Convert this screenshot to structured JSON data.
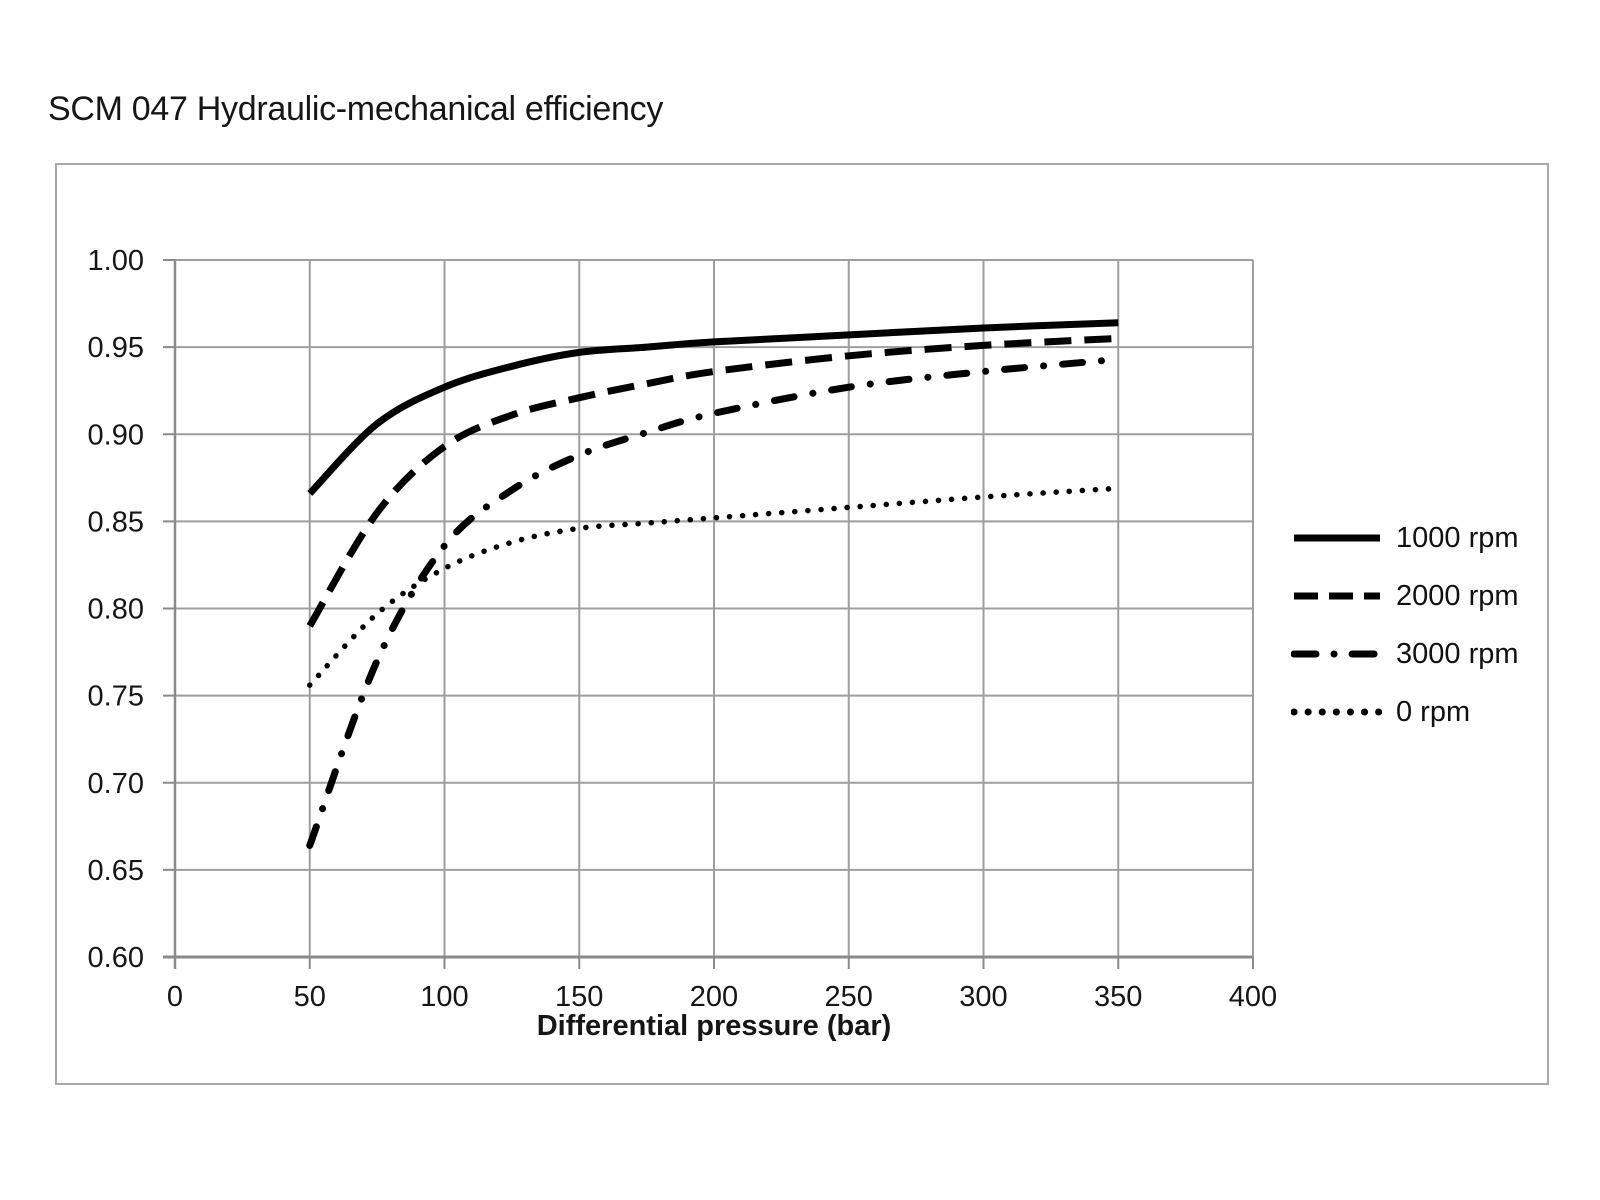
{
  "page_title": "SCM 047 Hydraulic-mechanical efficiency",
  "colors": {
    "curve": "#000000",
    "grid": "#9e9e9e",
    "axis": "#8a8a8a",
    "text": "#161616",
    "frame_border": "#a9a9a9",
    "background": "#ffffff"
  },
  "chart_data": {
    "type": "line",
    "title": "SCM 047 Hydraulic-mechanical efficiency",
    "xlabel": "Differential pressure (bar)",
    "ylabel": "",
    "xlim": [
      0,
      400
    ],
    "ylim": [
      0.6,
      1.0
    ],
    "grid": true,
    "legend_position": "right",
    "x_ticks": [
      {
        "v": 0,
        "label": "0"
      },
      {
        "v": 50,
        "label": "50"
      },
      {
        "v": 100,
        "label": "100"
      },
      {
        "v": 150,
        "label": "150"
      },
      {
        "v": 200,
        "label": "200"
      },
      {
        "v": 250,
        "label": "250"
      },
      {
        "v": 300,
        "label": "300"
      },
      {
        "v": 350,
        "label": "350"
      },
      {
        "v": 400,
        "label": "400"
      }
    ],
    "y_ticks": [
      {
        "v": 1.0,
        "label": "1.00"
      },
      {
        "v": 0.95,
        "label": "0.95"
      },
      {
        "v": 0.9,
        "label": "0.90"
      },
      {
        "v": 0.85,
        "label": "0.85"
      },
      {
        "v": 0.8,
        "label": "0.80"
      },
      {
        "v": 0.75,
        "label": "0.75"
      },
      {
        "v": 0.7,
        "label": "0.70"
      },
      {
        "v": 0.65,
        "label": "0.65"
      },
      {
        "v": 0.6,
        "label": "0.60"
      }
    ],
    "x": [
      50,
      75,
      100,
      125,
      150,
      175,
      200,
      250,
      300,
      350
    ],
    "series": [
      {
        "name": "1000 rpm",
        "style": "solid",
        "values": [
          0.866,
          0.906,
          0.927,
          0.939,
          0.947,
          0.95,
          0.953,
          0.957,
          0.961,
          0.964
        ]
      },
      {
        "name": "2000 rpm",
        "style": "dashed",
        "values": [
          0.79,
          0.855,
          0.893,
          0.911,
          0.921,
          0.929,
          0.936,
          0.945,
          0.951,
          0.955
        ]
      },
      {
        "name": "3000 rpm",
        "style": "dashdot",
        "values": [
          0.664,
          0.77,
          0.836,
          0.868,
          0.888,
          0.901,
          0.912,
          0.927,
          0.936,
          0.943
        ]
      },
      {
        "name": "0 rpm",
        "style": "dotted",
        "values": [
          0.756,
          0.797,
          0.823,
          0.838,
          0.846,
          0.849,
          0.852,
          0.858,
          0.864,
          0.869
        ]
      }
    ]
  }
}
